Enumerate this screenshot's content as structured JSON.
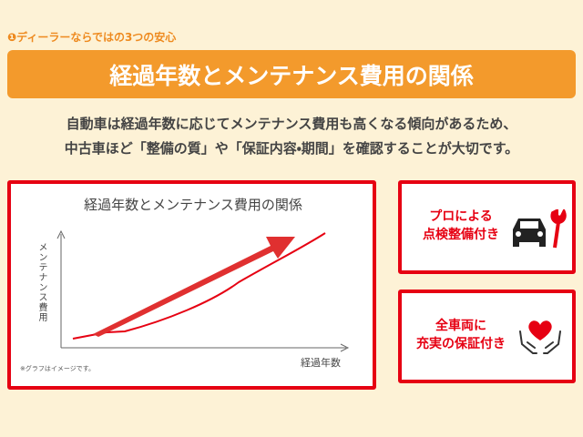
{
  "header": {
    "label": "❶ディーラーならではの3つの安心",
    "title": "経過年数とメンテナンス費用の関係"
  },
  "intro": {
    "lines": [
      "自動車は経過年数に応じてメンテナンス費用も高くなる傾向があるため、",
      "中古車ほど「整備の質」や「保証内容・期間」を確認することが大切です。"
    ]
  },
  "graph": {
    "title": "経過年数とメンテナンス費用の関係",
    "y_label": "メンテナンス費用",
    "x_label": "経過年数",
    "note": "※グラフはイメージです。"
  },
  "cards": [
    {
      "lines": [
        "プロによる",
        "点検整備付き"
      ]
    },
    {
      "lines": [
        "全車両に",
        "充実の保証付き"
      ]
    }
  ]
}
